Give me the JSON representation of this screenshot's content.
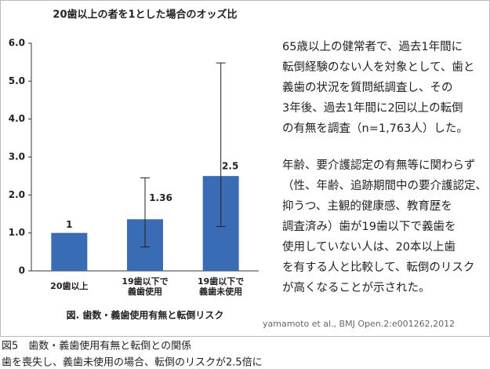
{
  "chart_data": {
    "type": "bar",
    "title": "20歯以上の者を1とした場合のオッズ比",
    "categories": [
      "20歯以上",
      "19歯以下で\n義歯使用",
      "19歯以下で\n義歯未使用"
    ],
    "values": [
      1,
      1.36,
      2.5
    ],
    "error_low": [
      null,
      0.63,
      1.17
    ],
    "error_high": [
      null,
      2.45,
      5.48
    ],
    "color": "#3a6cb5",
    "xlabel": "図. 歯数・義歯使用有無と転倒リスク",
    "ylim": [
      0,
      6
    ],
    "yticks": [
      0,
      {
        "value": 1,
        "label": "1.0"
      },
      {
        "value": 2,
        "label": "2.0"
      },
      {
        "value": 3,
        "label": "3.0"
      },
      {
        "value": 4,
        "label": "4.0"
      },
      {
        "value": 5,
        "label": "5.0"
      },
      {
        "value": 6,
        "label": "6.0"
      }
    ]
  },
  "paragraphs": [
    [
      "65歳以上の健常者で、過去1年間に",
      "転倒経験のない人を対象として、歯と",
      "義歯の状況を質問紙調査し、その",
      "3年後、過去1年間に2回以上の転倒",
      "の有無を調査（n=1,763人）した。"
    ],
    [
      "年齢、要介護認定の有無等に関わらず",
      "（性、年齢、追跡期間中の要介護認定、",
      "抑うつ、主観的健康感、教育歴を",
      "調査済み）歯が19歯以下で義歯を",
      "使用していない人は、20本以上歯",
      "を有する人と比較して、転倒のリスク",
      "が高くなることが示された。"
    ]
  ],
  "source": "yamamoto et al., BMJ Open.2:e001262,2012",
  "caption": [
    "図5　歯数・義歯使用有無と転倒との関係",
    "歯を喪失し、義歯未使用の場合、転倒のリスクが2.5倍に"
  ]
}
